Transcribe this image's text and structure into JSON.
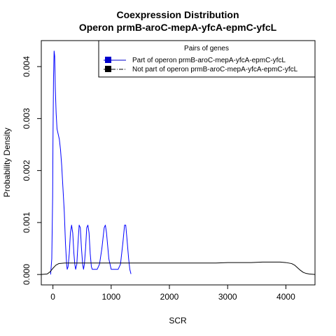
{
  "chart_data": {
    "type": "line",
    "title": "Coexpression Distribution",
    "subtitle": "Operon prmB-aroC-mepA-yfcA-epmC-yfcL",
    "xlabel": "SCR",
    "ylabel": "Probability Density",
    "xlim": [
      -200,
      4500
    ],
    "ylim": [
      -0.0002,
      0.0045
    ],
    "x_ticks": [
      0,
      1000,
      2000,
      3000,
      4000
    ],
    "x_tick_labels": [
      "0",
      "1000",
      "2000",
      "3000",
      "4000"
    ],
    "y_ticks": [
      0.0,
      0.001,
      0.002,
      0.003,
      0.004
    ],
    "y_tick_labels": [
      "0.000",
      "0.001",
      "0.002",
      "0.003",
      "0.004"
    ],
    "grid": false,
    "legend": {
      "title": "Pairs of genes",
      "placement": "top-right",
      "entries": [
        {
          "label": "Part of operon prmB-aroC-mepA-yfcA-epmC-yfcL",
          "color": "#0000cc",
          "style": "solid"
        },
        {
          "label": "Not part of operon prmB-aroC-mepA-yfcA-epmC-yfcL",
          "color": "#000000",
          "style": "dashdot"
        }
      ]
    },
    "series": [
      {
        "color": "#0000ff",
        "x": [
          -40,
          -20,
          -5,
          0,
          10,
          20,
          30,
          40,
          55,
          70,
          90,
          110,
          130,
          150,
          165,
          180,
          195,
          205,
          215,
          225,
          235,
          245,
          260,
          280,
          300,
          320,
          340,
          360,
          375,
          390,
          410,
          430,
          450,
          470,
          490,
          510,
          525,
          540,
          560,
          580,
          600,
          620,
          640,
          660,
          675,
          690,
          720,
          760,
          800,
          840,
          880,
          900,
          920,
          960,
          1000,
          1040,
          1080,
          1120,
          1160,
          1200,
          1230,
          1250,
          1270,
          1300,
          1320,
          1340
        ],
        "y": [
          0.0,
          0.0003,
          0.0015,
          0.0025,
          0.0038,
          0.0043,
          0.0042,
          0.0036,
          0.0031,
          0.0028,
          0.0027,
          0.0026,
          0.0024,
          0.0021,
          0.0018,
          0.0015,
          0.0012,
          0.0009,
          0.0006,
          0.0004,
          0.0002,
          0.0001,
          0.00015,
          0.0004,
          0.0008,
          0.00095,
          0.0008,
          0.0004,
          0.0002,
          0.0001,
          0.0002,
          0.0006,
          0.00095,
          0.0009,
          0.0005,
          0.0002,
          0.0001,
          0.0002,
          0.0005,
          0.0009,
          0.00095,
          0.0008,
          0.0004,
          0.00015,
          0.0001,
          0.0001,
          0.0001,
          0.0001,
          0.0002,
          0.0005,
          0.0009,
          0.00095,
          0.0008,
          0.0003,
          0.0001,
          0.0001,
          0.0001,
          0.0001,
          0.0002,
          0.0006,
          0.00095,
          0.00095,
          0.0007,
          0.0003,
          0.0001,
          1e-05
        ]
      },
      {
        "color": "#000000",
        "x": [
          -200,
          -100,
          -50,
          0,
          50,
          100,
          200,
          400,
          600,
          800,
          1000,
          1200,
          1400,
          1600,
          1800,
          2000,
          2200,
          2400,
          2600,
          2800,
          3000,
          3200,
          3400,
          3600,
          3700,
          3800,
          3900,
          4000,
          4100,
          4150,
          4200,
          4250,
          4300,
          4350,
          4400,
          4450,
          4500
        ],
        "y": [
          0.0,
          1e-05,
          5e-05,
          0.00012,
          0.00018,
          0.00021,
          0.00022,
          0.00022,
          0.00022,
          0.00022,
          0.00022,
          0.00022,
          0.00022,
          0.00022,
          0.00022,
          0.00022,
          0.00022,
          0.00022,
          0.00022,
          0.00022,
          0.00023,
          0.00023,
          0.00023,
          0.00024,
          0.00024,
          0.00024,
          0.00024,
          0.00023,
          0.00021,
          0.00018,
          0.00013,
          8e-05,
          4e-05,
          2e-05,
          1e-05,
          5e-06,
          0.0
        ]
      }
    ]
  }
}
